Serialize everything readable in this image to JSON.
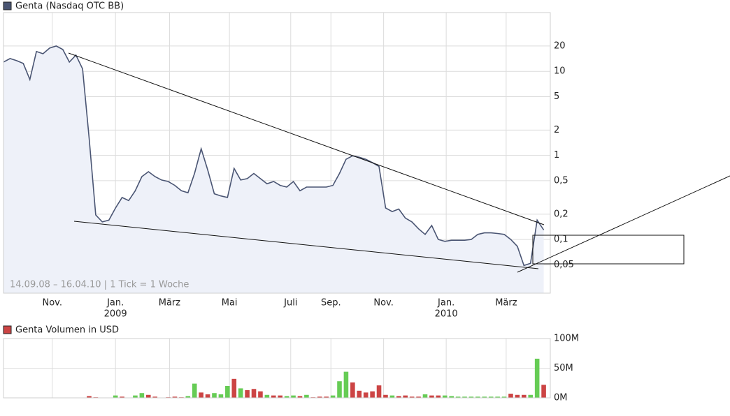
{
  "chart_data": [
    {
      "type": "line",
      "title": "Genta (Nasdaq OTC BB)",
      "subtitle": "14.09.08 – 16.04.10 | 1 Tick = 1 Woche",
      "log_scale": true,
      "grid": true,
      "ylim": [
        0.023,
        50
      ],
      "xlim": [
        0,
        83
      ],
      "yticks": [
        {
          "value": 0.05,
          "label": "0,05"
        },
        {
          "value": 0.1,
          "label": "0,1"
        },
        {
          "value": 0.2,
          "label": "0,2"
        },
        {
          "value": 0.5,
          "label": "0,5"
        },
        1,
        2,
        5,
        10,
        20
      ],
      "xticks": [
        {
          "value": 7.4,
          "label": "Nov."
        },
        {
          "value": 17,
          "label": "Jan.",
          "year": "2009"
        },
        {
          "value": 25.2,
          "label": "März"
        },
        {
          "value": 34.3,
          "label": "Mai"
        },
        {
          "value": 43.6,
          "label": "Juli"
        },
        {
          "value": 49.7,
          "label": "Sep."
        },
        {
          "value": 57.7,
          "label": "Nov."
        },
        {
          "value": 67.2,
          "label": "Jan.",
          "year": "2010"
        },
        {
          "value": 76.3,
          "label": "März"
        }
      ],
      "series": [
        {
          "name": "Genta (Nasdaq OTC BB)",
          "color": "#4a5573",
          "fill": "#eef1f9",
          "values": [
            12.9,
            14.2,
            13.4,
            12.4,
            8.0,
            17.2,
            16.2,
            18.9,
            20,
            18.2,
            12.9,
            15.6,
            10.7,
            1.6,
            0.196,
            0.162,
            0.17,
            0.237,
            0.316,
            0.29,
            0.38,
            0.56,
            0.64,
            0.56,
            0.51,
            0.49,
            0.44,
            0.38,
            0.36,
            0.61,
            1.2,
            0.67,
            0.35,
            0.33,
            0.316,
            0.7,
            0.51,
            0.53,
            0.61,
            0.53,
            0.46,
            0.49,
            0.44,
            0.42,
            0.49,
            0.38,
            0.42,
            0.42,
            0.42,
            0.42,
            0.44,
            0.61,
            0.9,
            0.99,
            0.95,
            0.9,
            0.82,
            0.74,
            0.237,
            0.215,
            0.23,
            0.18,
            0.162,
            0.134,
            0.115,
            0.147,
            0.1,
            0.095,
            0.098,
            0.098,
            0.098,
            0.1,
            0.115,
            0.12,
            0.12,
            0.118,
            0.115,
            0.1,
            0.083,
            0.049,
            0.052,
            0.17,
            0.13
          ]
        }
      ]
    },
    {
      "type": "bar",
      "title": "Genta Volumen in USD",
      "legend_color": "#cc4444",
      "grid": true,
      "ylim": [
        0,
        100000000
      ],
      "xlim": [
        0,
        83
      ],
      "yticks": [
        {
          "value": 0,
          "label": "0M"
        },
        {
          "value": 50000000,
          "label": "50M"
        },
        {
          "value": 100000000,
          "label": "100M"
        }
      ],
      "values": [
        0,
        0,
        0,
        0,
        0,
        0,
        0,
        0,
        0,
        0,
        0,
        0,
        0,
        3000000,
        1000000,
        0,
        0,
        4000000,
        2000000,
        0,
        4000000,
        8000000,
        5000000,
        2000000,
        0,
        1000000,
        2000000,
        1000000,
        3000000,
        24000000,
        9000000,
        6000000,
        8000000,
        6000000,
        20000000,
        32000000,
        16000000,
        13000000,
        15000000,
        11000000,
        5000000,
        4000000,
        4000000,
        3000000,
        4000000,
        3000000,
        5000000,
        1000000,
        2000000,
        2000000,
        4000000,
        28000000,
        44000000,
        26000000,
        12000000,
        9000000,
        11000000,
        21000000,
        5000000,
        4000000,
        3000000,
        4000000,
        2000000,
        2000000,
        6000000,
        4000000,
        4000000,
        4000000,
        3000000,
        2000000,
        2000000,
        2000000,
        2000000,
        2000000,
        2000000,
        2000000,
        2000000,
        7000000,
        5000000,
        5000000,
        5000000,
        66000000,
        22000000
      ],
      "colors": [
        "#66cc55",
        "#66cc55",
        "#66cc55",
        "#66cc55",
        "#66cc55",
        "#66cc55",
        "#66cc55",
        "#66cc55",
        "#66cc55",
        "#66cc55",
        "#66cc55",
        "#66cc55",
        "#66cc55",
        "#cc4444",
        "#cc4444",
        "#66cc55",
        "#66cc55",
        "#66cc55",
        "#cc4444",
        "#66cc55",
        "#66cc55",
        "#66cc55",
        "#cc4444",
        "#cc4444",
        "#66cc55",
        "#cc4444",
        "#cc4444",
        "#cc4444",
        "#66cc55",
        "#66cc55",
        "#cc4444",
        "#cc4444",
        "#66cc55",
        "#66cc55",
        "#66cc55",
        "#cc4444",
        "#66cc55",
        "#cc4444",
        "#cc4444",
        "#cc4444",
        "#66cc55",
        "#cc4444",
        "#cc4444",
        "#66cc55",
        "#66cc55",
        "#cc4444",
        "#66cc55",
        "#cc4444",
        "#cc4444",
        "#cc4444",
        "#66cc55",
        "#66cc55",
        "#66cc55",
        "#cc4444",
        "#cc4444",
        "#cc4444",
        "#cc4444",
        "#cc4444",
        "#cc4444",
        "#66cc55",
        "#cc4444",
        "#cc4444",
        "#cc4444",
        "#cc4444",
        "#66cc55",
        "#cc4444",
        "#cc4444",
        "#66cc55",
        "#66cc55",
        "#66cc55",
        "#66cc55",
        "#66cc55",
        "#66cc55",
        "#66cc55",
        "#66cc55",
        "#66cc55",
        "#66cc55",
        "#cc4444",
        "#cc4444",
        "#cc4444",
        "#66cc55",
        "#66cc55",
        "#cc4444"
      ]
    }
  ]
}
